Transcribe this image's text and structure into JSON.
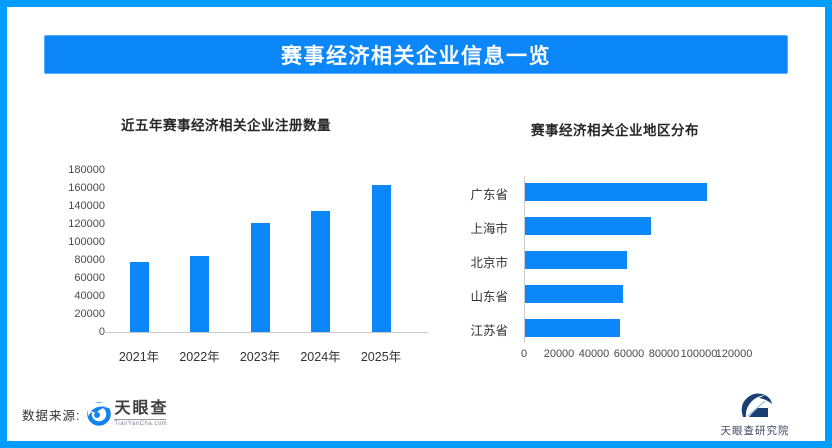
{
  "page": {
    "title": "赛事经济相关企业信息一览"
  },
  "colors": {
    "frame": "#009dfc",
    "banner": "#0b87fa",
    "bar": "#0b87fa",
    "axis_line": "#c9c9c9",
    "tianyancha_blue": "#1282f0",
    "institute_navy": "#1b3e70"
  },
  "footer": {
    "source_label": "数据来源:",
    "tianyancha_text": "天眼查",
    "tianyancha_sub": "TianYanCha.com",
    "institute_text": "天眼查研究院"
  },
  "chart_data": [
    {
      "type": "bar",
      "orientation": "vertical",
      "title": "近五年赛事经济相关企业注册数量",
      "categories": [
        "2021年",
        "2022年",
        "2023年",
        "2024年",
        "2025年"
      ],
      "values": [
        78000,
        85000,
        121000,
        134000,
        163000
      ],
      "ylabel": "",
      "xlabel": "",
      "ylim": [
        0,
        180000
      ],
      "yticks": [
        0,
        20000,
        40000,
        60000,
        80000,
        100000,
        120000,
        140000,
        160000,
        180000
      ],
      "grid": false,
      "legend": null,
      "bar_color": "#0b87fa"
    },
    {
      "type": "bar",
      "orientation": "horizontal",
      "title": "赛事经济相关企业地区分布",
      "categories": [
        "广东省",
        "上海市",
        "北京市",
        "山东省",
        "江苏省"
      ],
      "values": [
        104000,
        72000,
        58000,
        56000,
        54000
      ],
      "xlim": [
        0,
        120000
      ],
      "xticks": [
        0,
        20000,
        40000,
        60000,
        80000,
        100000,
        120000
      ],
      "grid": false,
      "legend": null,
      "bar_color": "#0b87fa"
    }
  ]
}
